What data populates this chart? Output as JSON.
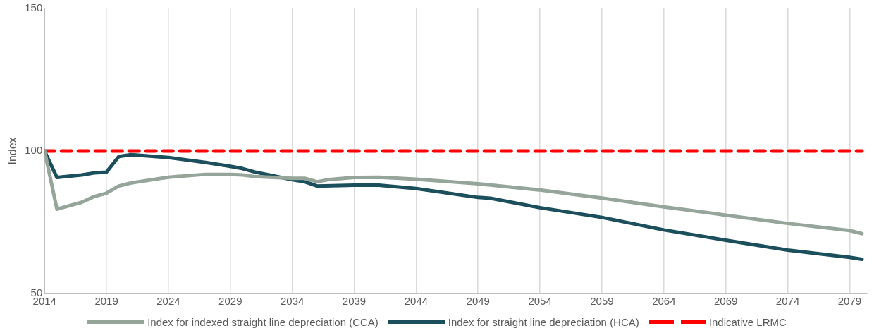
{
  "chart_data": {
    "type": "line",
    "ylabel": "Index",
    "xlim": [
      2014,
      2080.4
    ],
    "xticks": [
      2014,
      2019,
      2024,
      2029,
      2034,
      2039,
      2044,
      2049,
      2054,
      2059,
      2064,
      2069,
      2074,
      2079
    ],
    "ylim": [
      50,
      150
    ],
    "yticks": [
      50,
      100,
      150
    ],
    "grid": "x",
    "legend": "bottom",
    "marker": "none",
    "series": [
      {
        "name": "Index for indexed straight line depreciation (CCA)",
        "color": "#95a59a",
        "x": [
          2014,
          2015,
          2017,
          2018,
          2019,
          2020,
          2021,
          2024,
          2027,
          2029,
          2030,
          2031,
          2034,
          2035,
          2036,
          2037,
          2039,
          2041,
          2044,
          2049,
          2054,
          2059,
          2064,
          2069,
          2074,
          2079,
          2080
        ],
        "values": [
          100,
          79.6,
          82,
          84,
          85.2,
          87.7,
          88.8,
          90.8,
          91.8,
          91.8,
          91.6,
          91,
          90.4,
          90.4,
          89.2,
          90,
          90.7,
          90.8,
          90.1,
          88.5,
          86.3,
          83.5,
          80.4,
          77.5,
          74.6,
          72.1,
          71
        ]
      },
      {
        "name": "Index for straight line depreciation (HCA)",
        "color": "#1b4f5c",
        "x": [
          2014,
          2015,
          2017,
          2018,
          2019,
          2020,
          2021,
          2024,
          2027,
          2029,
          2030,
          2031,
          2034,
          2035,
          2036,
          2039,
          2041,
          2044,
          2049,
          2050,
          2054,
          2059,
          2064,
          2069,
          2074,
          2079,
          2080
        ],
        "values": [
          100,
          90.7,
          91.6,
          92.3,
          92.6,
          98.1,
          98.7,
          97.7,
          96,
          94.6,
          93.8,
          92.6,
          89.9,
          89.2,
          87.7,
          88,
          88,
          86.8,
          83.7,
          83.4,
          80.1,
          76.7,
          72.3,
          68.7,
          65.2,
          62.7,
          62
        ]
      },
      {
        "name": "Indicative LRMC",
        "color": "#ff0000",
        "line_style": "dashed",
        "x": [
          2014,
          2080
        ],
        "values": [
          100,
          100
        ]
      }
    ]
  }
}
